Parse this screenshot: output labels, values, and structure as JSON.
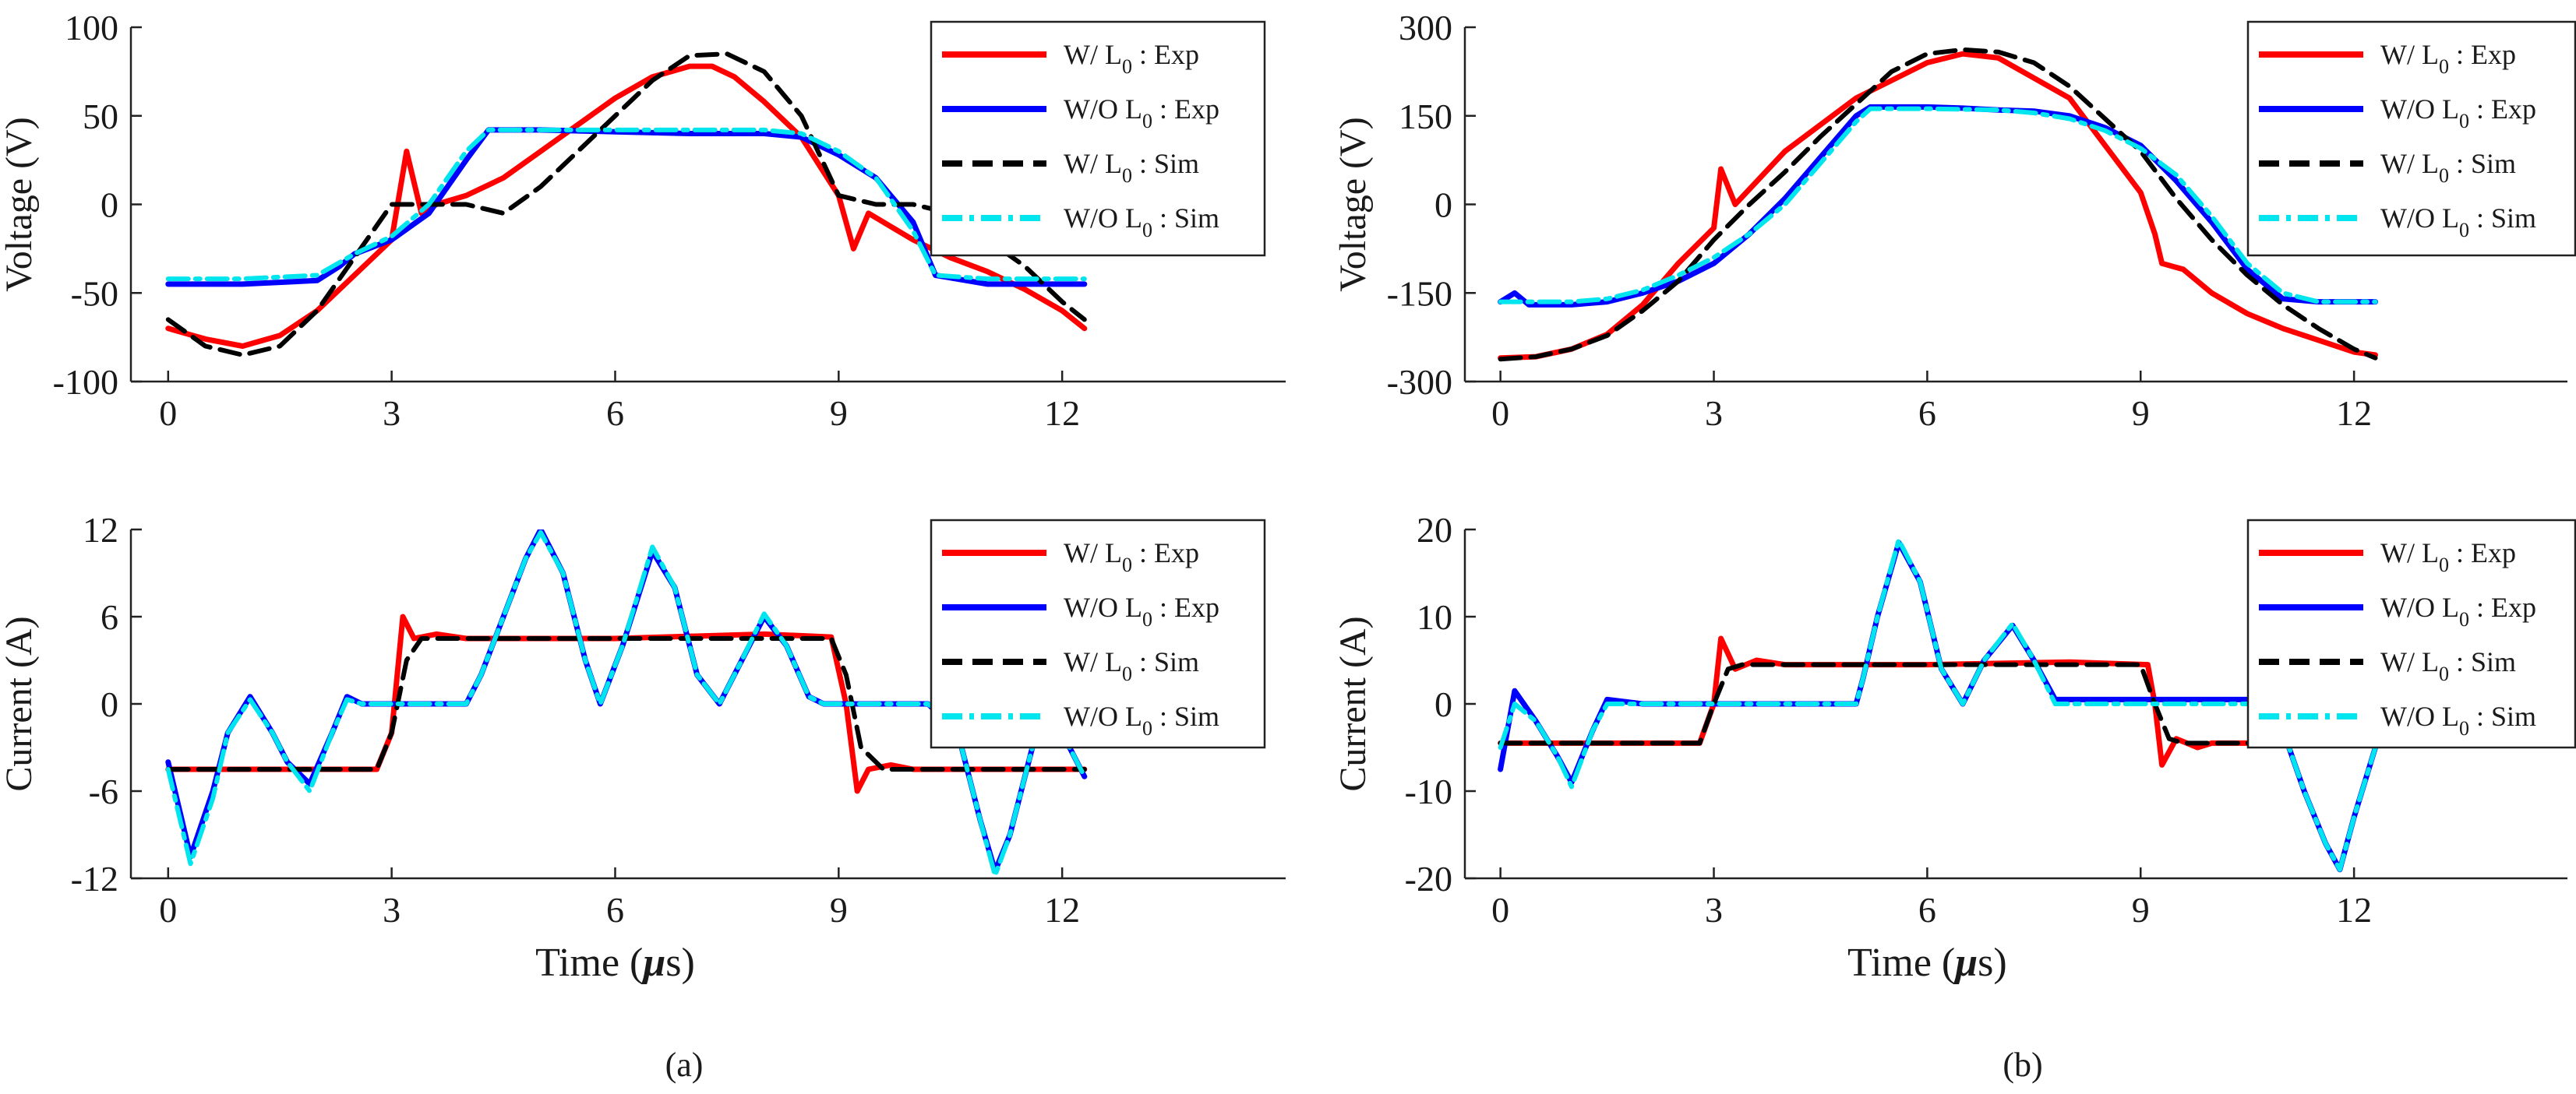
{
  "figure": {
    "x_axis_label_prefix": "Time (",
    "x_axis_label_mu": "μ",
    "x_axis_label_suffix": "s)"
  },
  "legend": [
    {
      "name": "W/ L0 : Exp",
      "pre": "W/ L",
      "sub": "0",
      "post": " : Exp",
      "color": "#ff0000",
      "dash": "solid"
    },
    {
      "name": "W/O L0 : Exp",
      "pre": "W/O L",
      "sub": "0",
      "post": " : Exp",
      "color": "#0000ff",
      "dash": "solid"
    },
    {
      "name": "W/ L0 : Sim",
      "pre": "W/ L",
      "sub": "0",
      "post": " : Sim",
      "color": "#000000",
      "dash": "dash"
    },
    {
      "name": "W/O L0 : Sim",
      "pre": "W/O L",
      "sub": "0",
      "post": " : Sim",
      "color": "#00e5ee",
      "dash": "dashdot"
    }
  ],
  "chart_data": [
    {
      "id": "a-voltage",
      "type": "line",
      "caption": "(a)",
      "ylabel": "Voltage (V)",
      "xlabel": "",
      "xlim": [
        -0.5,
        15
      ],
      "ylim": [
        -100,
        100
      ],
      "xticks": [
        0,
        3,
        6,
        9,
        12
      ],
      "yticks": [
        -100,
        -50,
        0,
        50,
        100
      ],
      "series": [
        {
          "name": "W/ L0 : Exp",
          "x": [
            0,
            0.5,
            1,
            1.5,
            2,
            2.5,
            3,
            3.2,
            3.4,
            3.6,
            4,
            4.5,
            5,
            5.5,
            6,
            6.5,
            7,
            7.3,
            7.6,
            8,
            8.5,
            9,
            9.2,
            9.4,
            9.6,
            10,
            10.5,
            11,
            11.5,
            12,
            12.3
          ],
          "y": [
            -70,
            -76,
            -80,
            -74,
            -60,
            -40,
            -20,
            30,
            -5,
            0,
            5,
            15,
            30,
            45,
            60,
            72,
            78,
            78,
            72,
            58,
            38,
            5,
            -25,
            -5,
            -10,
            -20,
            -30,
            -38,
            -48,
            -60,
            -70
          ]
        },
        {
          "name": "W/O L0 : Exp",
          "x": [
            0,
            1,
            2,
            2.3,
            2.5,
            3,
            3.5,
            4,
            4.3,
            5,
            6,
            7,
            8,
            8.5,
            9,
            9.5,
            10,
            10.3,
            11,
            12,
            12.3
          ],
          "y": [
            -45,
            -45,
            -43,
            -35,
            -28,
            -20,
            -5,
            25,
            42,
            42,
            41,
            40,
            40,
            38,
            28,
            15,
            -10,
            -40,
            -45,
            -45,
            -45
          ]
        },
        {
          "name": "W/ L0 : Sim",
          "x": [
            0,
            0.5,
            1,
            1.5,
            2,
            2.5,
            3,
            3.5,
            4,
            4.5,
            5,
            5.5,
            6,
            6.5,
            7,
            7.5,
            8,
            8.5,
            9,
            9.5,
            10,
            10.5,
            11,
            11.5,
            12,
            12.3
          ],
          "y": [
            -65,
            -80,
            -85,
            -80,
            -60,
            -30,
            0,
            0,
            0,
            -5,
            10,
            30,
            50,
            70,
            84,
            85,
            75,
            50,
            5,
            0,
            0,
            -5,
            -20,
            -35,
            -55,
            -65
          ]
        },
        {
          "name": "W/O L0 : Sim",
          "x": [
            0,
            1,
            2,
            2.5,
            3,
            3.5,
            4,
            4.3,
            5,
            6,
            7,
            8,
            8.5,
            9,
            9.5,
            10,
            10.3,
            11,
            12,
            12.3
          ],
          "y": [
            -42,
            -42,
            -40,
            -28,
            -18,
            0,
            30,
            42,
            42,
            42,
            42,
            42,
            40,
            30,
            15,
            -15,
            -40,
            -42,
            -42,
            -42
          ]
        }
      ]
    },
    {
      "id": "b-voltage",
      "type": "line",
      "caption": "(b)",
      "ylabel": "Voltage (V)",
      "xlabel": "",
      "xlim": [
        -0.5,
        15
      ],
      "ylim": [
        -300,
        300
      ],
      "xticks": [
        0,
        3,
        6,
        9,
        12
      ],
      "yticks": [
        -300,
        -150,
        0,
        150,
        300
      ],
      "series": [
        {
          "name": "W/ L0 : Exp",
          "x": [
            0,
            0.5,
            1,
            1.5,
            2,
            2.5,
            3,
            3.1,
            3.3,
            4,
            5,
            6,
            6.5,
            7,
            8,
            8.5,
            9,
            9.2,
            9.3,
            9.6,
            10,
            10.5,
            11,
            11.5,
            12,
            12.3
          ],
          "y": [
            -260,
            -258,
            -245,
            -220,
            -170,
            -100,
            -40,
            60,
            0,
            90,
            180,
            240,
            255,
            248,
            180,
            100,
            20,
            -50,
            -100,
            -110,
            -150,
            -185,
            -210,
            -230,
            -250,
            -255
          ]
        },
        {
          "name": "W/O L0 : Exp",
          "x": [
            0,
            0.2,
            0.4,
            1,
            1.5,
            2,
            2.5,
            3,
            3.5,
            4,
            4.5,
            5,
            5.2,
            6,
            6.5,
            7,
            7.5,
            8,
            8.5,
            9,
            9.5,
            10,
            10.5,
            11,
            11.5,
            12,
            12.3
          ],
          "y": [
            -165,
            -150,
            -170,
            -170,
            -165,
            -150,
            -130,
            -100,
            -50,
            10,
            80,
            150,
            165,
            165,
            163,
            160,
            158,
            150,
            130,
            100,
            40,
            -30,
            -110,
            -160,
            -165,
            -165,
            -165
          ]
        },
        {
          "name": "W/ L0 : Sim",
          "x": [
            0,
            0.5,
            1,
            1.5,
            2,
            2.5,
            3,
            3.5,
            4,
            4.5,
            5,
            5.5,
            6,
            6.5,
            7,
            7.5,
            8,
            8.5,
            9,
            9.5,
            10,
            10.5,
            11,
            11.5,
            12,
            12.3
          ],
          "y": [
            -262,
            -258,
            -245,
            -222,
            -180,
            -130,
            -60,
            0,
            55,
            115,
            170,
            225,
            255,
            262,
            258,
            240,
            200,
            145,
            90,
            10,
            -60,
            -120,
            -170,
            -210,
            -245,
            -260
          ]
        },
        {
          "name": "W/O L0 : Sim",
          "x": [
            0,
            1,
            1.5,
            2,
            2.5,
            3,
            3.5,
            4,
            4.5,
            5,
            5.2,
            6,
            7,
            7.5,
            8,
            8.5,
            9,
            9.5,
            10,
            10.5,
            11,
            11.5,
            12,
            12.3
          ],
          "y": [
            -165,
            -165,
            -160,
            -145,
            -120,
            -90,
            -50,
            0,
            70,
            140,
            162,
            162,
            160,
            155,
            145,
            125,
            95,
            50,
            -20,
            -100,
            -150,
            -165,
            -165,
            -165
          ]
        }
      ]
    },
    {
      "id": "a-current",
      "type": "line",
      "caption": "",
      "ylabel": "Current (A)",
      "xlabel": "Time (μs)",
      "xlim": [
        -0.5,
        15
      ],
      "ylim": [
        -12,
        12
      ],
      "xticks": [
        0,
        3,
        6,
        9,
        12
      ],
      "yticks": [
        -12,
        -6,
        0,
        6,
        12
      ],
      "series": [
        {
          "name": "W/ L0 : Exp",
          "x": [
            0,
            2.8,
            3.0,
            3.15,
            3.3,
            3.6,
            4,
            6,
            8,
            8.9,
            9.1,
            9.25,
            9.4,
            9.7,
            10,
            12.3
          ],
          "y": [
            -4.5,
            -4.5,
            -2,
            6,
            4.5,
            4.8,
            4.5,
            4.5,
            4.8,
            4.6,
            0,
            -6,
            -4.5,
            -4.2,
            -4.5,
            -4.5
          ]
        },
        {
          "name": "W/O L0 : Exp",
          "x": [
            0,
            0.3,
            0.6,
            0.8,
            1.1,
            1.4,
            1.6,
            1.9,
            2.2,
            2.4,
            2.6,
            3,
            4,
            4.2,
            4.5,
            4.8,
            5.0,
            5.3,
            5.6,
            5.8,
            6.1,
            6.5,
            6.8,
            7.1,
            7.4,
            7.7,
            8.0,
            8.3,
            8.6,
            8.8,
            9,
            10.2,
            10.6,
            10.9,
            11.1,
            11.3,
            11.6,
            11.9,
            12.3
          ],
          "y": [
            -4,
            -10.5,
            -6,
            -2,
            0.5,
            -2,
            -4,
            -5.5,
            -2,
            0.5,
            0,
            0,
            0,
            2,
            6,
            10,
            12,
            9,
            3,
            0,
            4,
            10.5,
            8,
            2,
            0,
            3,
            6,
            4,
            0.5,
            0,
            0,
            0,
            -2,
            -8,
            -11.5,
            -9,
            -3,
            -1,
            -5
          ]
        },
        {
          "name": "W/ L0 : Sim",
          "x": [
            0,
            2.8,
            3.0,
            3.2,
            3.4,
            6,
            8,
            8.9,
            9.1,
            9.3,
            9.6,
            12.3
          ],
          "y": [
            -4.5,
            -4.5,
            -2,
            3,
            4.5,
            4.5,
            4.5,
            4.5,
            2,
            -3,
            -4.5,
            -4.5
          ]
        },
        {
          "name": "W/O L0 : Sim",
          "x": [
            0,
            0.3,
            0.6,
            0.8,
            1.1,
            1.4,
            1.6,
            1.9,
            2.2,
            2.4,
            2.6,
            3,
            4,
            4.2,
            4.5,
            4.8,
            5.0,
            5.3,
            5.6,
            5.8,
            6.1,
            6.5,
            6.8,
            7.1,
            7.4,
            7.7,
            8.0,
            8.3,
            8.6,
            8.8,
            9,
            10.2,
            10.6,
            10.9,
            11.1,
            11.3,
            11.6,
            11.9,
            12.3
          ],
          "y": [
            -4.5,
            -11,
            -6.5,
            -2,
            0.3,
            -2,
            -4,
            -6,
            -2,
            0.3,
            0,
            0,
            0,
            2,
            6,
            10,
            11.8,
            9,
            3,
            0,
            4,
            10.8,
            8,
            2,
            0,
            3,
            6.2,
            4,
            0.5,
            0,
            0,
            0,
            -2,
            -8,
            -11.8,
            -9,
            -3,
            -1,
            -5
          ]
        }
      ]
    },
    {
      "id": "b-current",
      "type": "line",
      "caption": "",
      "ylabel": "Current (A)",
      "xlabel": "Time (μs)",
      "xlim": [
        -0.5,
        15
      ],
      "ylim": [
        -20,
        20
      ],
      "xticks": [
        0,
        3,
        6,
        9,
        12
      ],
      "yticks": [
        -20,
        -10,
        0,
        10,
        20
      ],
      "series": [
        {
          "name": "W/ L0 : Exp",
          "x": [
            0,
            2.8,
            3.0,
            3.1,
            3.3,
            3.6,
            4,
            6,
            8,
            9.1,
            9.2,
            9.3,
            9.5,
            9.8,
            10,
            12.3
          ],
          "y": [
            -4.5,
            -4.5,
            0,
            7.5,
            4,
            5,
            4.5,
            4.5,
            4.8,
            4.5,
            0,
            -7,
            -4,
            -5,
            -4.5,
            -4.5
          ]
        },
        {
          "name": "W/O L0 : Exp",
          "x": [
            0,
            0.2,
            0.5,
            0.8,
            1.0,
            1.3,
            1.5,
            2,
            3,
            5,
            5.1,
            5.3,
            5.6,
            5.9,
            6.2,
            6.5,
            6.8,
            7.2,
            7.5,
            7.8,
            8,
            9,
            10.5,
            11.0,
            11.3,
            11.6,
            11.8,
            12.0,
            12.3
          ],
          "y": [
            -7.5,
            1.5,
            -2,
            -6,
            -9,
            -3,
            0.5,
            0,
            0,
            0,
            3,
            10,
            18.5,
            14,
            4,
            0,
            5,
            9,
            5,
            0.5,
            0.5,
            0.5,
            0.5,
            -3,
            -10,
            -16,
            -19,
            -13,
            -5
          ]
        },
        {
          "name": "W/ L0 : Sim",
          "x": [
            0,
            2.8,
            3.0,
            3.2,
            3.4,
            6,
            8,
            9.0,
            9.2,
            9.4,
            9.6,
            12.3
          ],
          "y": [
            -4.5,
            -4.5,
            0,
            4,
            4.5,
            4.5,
            4.5,
            4.5,
            0,
            -4,
            -4.5,
            -4.5
          ]
        },
        {
          "name": "W/O L0 : Sim",
          "x": [
            0,
            0.2,
            0.5,
            0.8,
            1.0,
            1.3,
            1.5,
            2,
            3,
            5,
            5.1,
            5.3,
            5.6,
            5.9,
            6.2,
            6.5,
            6.8,
            7.2,
            7.5,
            7.8,
            8,
            9,
            10.5,
            11.0,
            11.3,
            11.6,
            11.8,
            12.0,
            12.3
          ],
          "y": [
            -5,
            0,
            -2,
            -6,
            -9.5,
            -3,
            0,
            0,
            0,
            0,
            3,
            10,
            18.8,
            14,
            4,
            0,
            5,
            9.2,
            5,
            0,
            0,
            0,
            0,
            -3,
            -10,
            -16,
            -19,
            -13,
            -5
          ]
        }
      ]
    }
  ]
}
